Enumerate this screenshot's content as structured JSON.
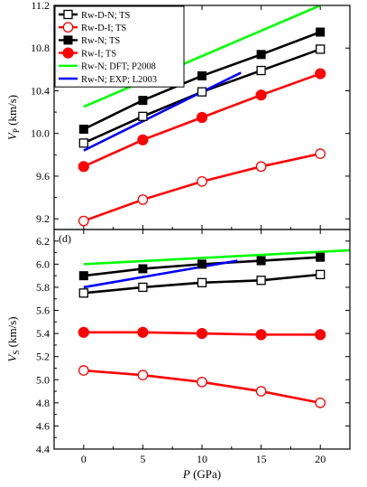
{
  "chart_data": [
    {
      "type": "line",
      "panel_label": "",
      "xlabel": "",
      "ylabel_main": "V",
      "ylabel_sub": "P",
      "ylabel_unit": " (km/s)",
      "xlim": [
        -2.5,
        22.5
      ],
      "ylim": [
        9.1,
        11.2
      ],
      "xticks": [
        0,
        5,
        10,
        15,
        20
      ],
      "yticks": [
        9.2,
        9.6,
        10.0,
        10.4,
        10.8,
        11.2
      ],
      "ytick_labels": [
        "9.2",
        "9.6",
        "10.0",
        "10.4",
        "10.8",
        "11.2"
      ],
      "legend_position": "top-left",
      "series": [
        {
          "name": "Rw-D-N; TS",
          "x": [
            0,
            5,
            10,
            15,
            20
          ],
          "values": [
            9.91,
            10.16,
            10.39,
            10.59,
            10.79
          ],
          "color": "#000000",
          "marker": "square-open"
        },
        {
          "name": "Rw-D-I; TS",
          "x": [
            0,
            5,
            10,
            15,
            20
          ],
          "values": [
            9.18,
            9.38,
            9.55,
            9.69,
            9.81
          ],
          "color": "#ff0000",
          "marker": "circle-open"
        },
        {
          "name": "Rw-N; TS",
          "x": [
            0,
            5,
            10,
            15,
            20
          ],
          "values": [
            10.04,
            10.31,
            10.54,
            10.74,
            10.95
          ],
          "color": "#000000",
          "marker": "square-filled"
        },
        {
          "name": "Rw-I; TS",
          "x": [
            0,
            5,
            10,
            15,
            20
          ],
          "values": [
            9.69,
            9.94,
            10.15,
            10.36,
            10.56
          ],
          "color": "#ff0000",
          "marker": "circle-filled"
        },
        {
          "name": "Rw-N; DFT; P2008",
          "x": [
            0,
            20
          ],
          "values": [
            10.25,
            11.2
          ],
          "color": "#00ff00",
          "marker": "none"
        },
        {
          "name": "Rw-N; EXP; L2003",
          "x": [
            0,
            13.3
          ],
          "values": [
            9.84,
            10.57
          ],
          "color": "#0000ff",
          "marker": "none"
        }
      ]
    },
    {
      "type": "line",
      "panel_label": "(d)",
      "xlabel_main": "P",
      "xlabel_unit": " (GPa)",
      "ylabel_main": "V",
      "ylabel_sub": "S",
      "ylabel_unit": " (km/s)",
      "xlim": [
        -2.5,
        22.5
      ],
      "ylim": [
        4.4,
        6.3
      ],
      "xticks": [
        0,
        5,
        10,
        15,
        20
      ],
      "xtick_labels": [
        "0",
        "5",
        "10",
        "15",
        "20"
      ],
      "yticks": [
        4.4,
        4.6,
        4.8,
        5.0,
        5.2,
        5.4,
        5.6,
        5.8,
        6.0,
        6.2
      ],
      "ytick_labels": [
        "4.4",
        "4.6",
        "4.8",
        "5.0",
        "5.2",
        "5.4",
        "5.6",
        "5.8",
        "6.0",
        "6.2"
      ],
      "series": [
        {
          "name": "Rw-D-N; TS",
          "x": [
            0,
            5,
            10,
            15,
            20
          ],
          "values": [
            5.75,
            5.8,
            5.84,
            5.86,
            5.91
          ],
          "color": "#000000",
          "marker": "square-open"
        },
        {
          "name": "Rw-D-I; TS",
          "x": [
            0,
            5,
            10,
            15,
            20
          ],
          "values": [
            5.08,
            5.04,
            4.98,
            4.9,
            4.8
          ],
          "color": "#ff0000",
          "marker": "circle-open"
        },
        {
          "name": "Rw-N; TS",
          "x": [
            0,
            5,
            10,
            15,
            20
          ],
          "values": [
            5.9,
            5.96,
            6.0,
            6.03,
            6.06
          ],
          "color": "#000000",
          "marker": "square-filled"
        },
        {
          "name": "Rw-I; TS",
          "x": [
            0,
            5,
            10,
            15,
            20
          ],
          "values": [
            5.41,
            5.41,
            5.4,
            5.39,
            5.39
          ],
          "color": "#ff0000",
          "marker": "circle-filled"
        },
        {
          "name": "Rw-N; DFT; P2008",
          "x": [
            0,
            22.5
          ],
          "values": [
            6.0,
            6.12
          ],
          "color": "#00ff00",
          "marker": "none"
        },
        {
          "name": "Rw-N; EXP; L2003",
          "x": [
            0,
            13
          ],
          "values": [
            5.8,
            6.03
          ],
          "color": "#0000ff",
          "marker": "none"
        }
      ]
    }
  ]
}
